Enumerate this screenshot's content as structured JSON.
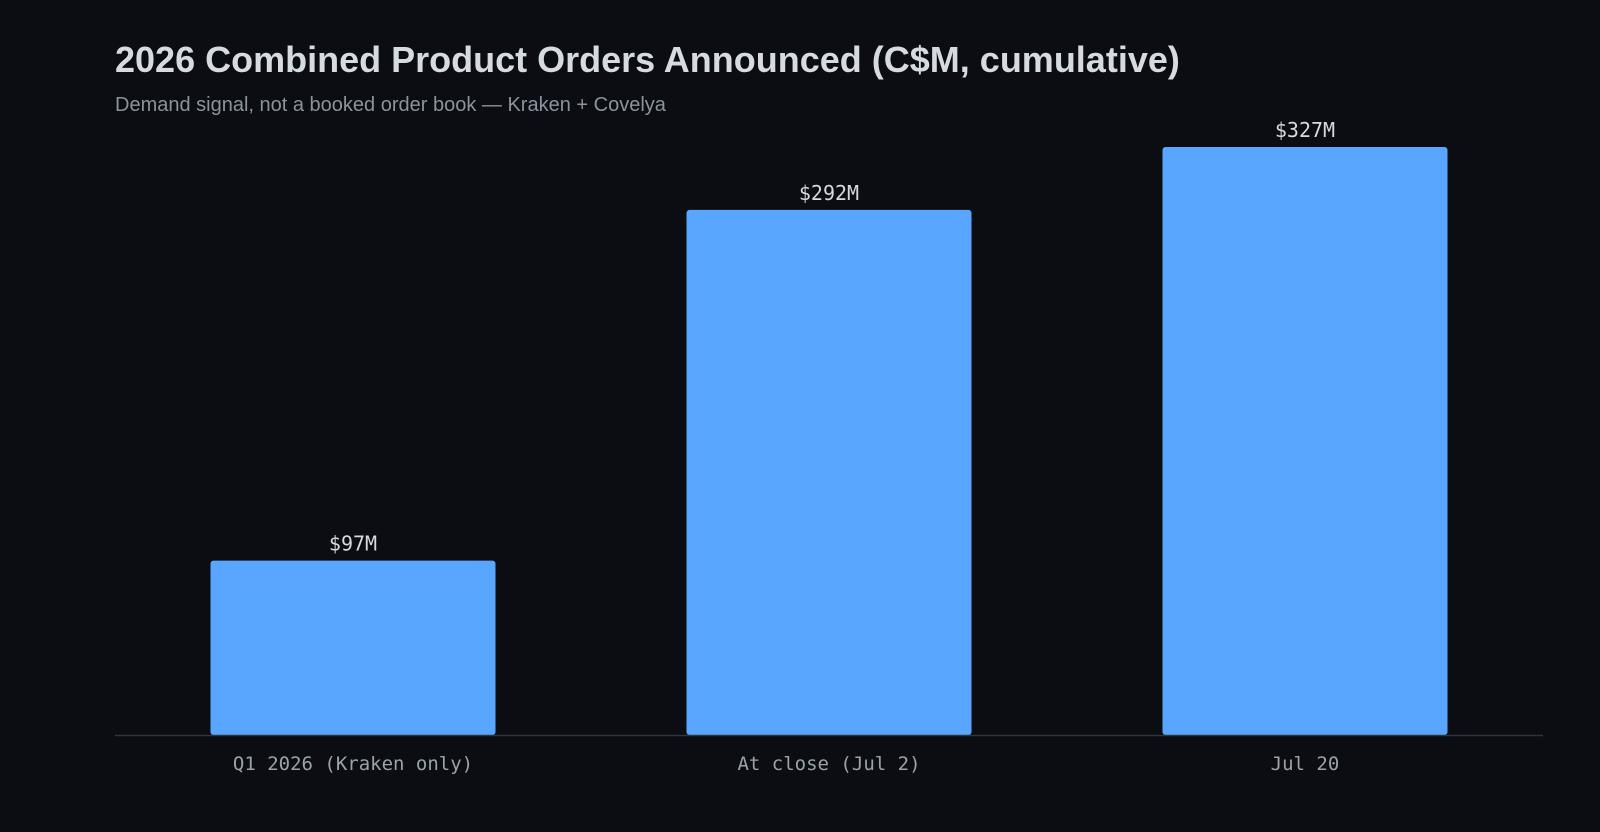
{
  "chart_data": {
    "type": "bar",
    "title": "2026 Combined Product Orders Announced (C$M, cumulative)",
    "subtitle": "Demand signal, not a booked order book — Kraken + Covelya",
    "categories": [
      "Q1 2026 (Kraken only)",
      "At close (Jul 2)",
      "Jul 20"
    ],
    "values": [
      97,
      292,
      327
    ],
    "value_labels": [
      "$97M",
      "$292M",
      "$327M"
    ],
    "xlabel": "",
    "ylabel": "",
    "ylim": [
      0,
      327
    ],
    "grid": false,
    "legend": "none",
    "colors": {
      "background": "#0b0d12",
      "bar": "#58a6ff",
      "axis": "#2f353d",
      "title": "#d6dbe1",
      "subtitle": "#8b939c",
      "value_label": "#d6dbe1",
      "tick_label": "#9aa2ab"
    }
  }
}
